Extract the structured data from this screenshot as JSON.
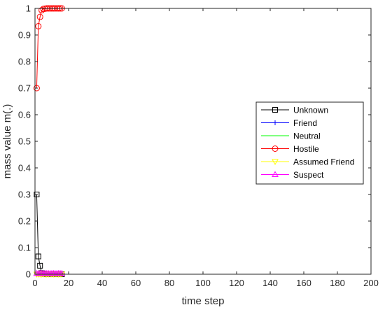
{
  "chart_data": {
    "type": "line",
    "xlabel": "time step",
    "ylabel": "mass value m(.)",
    "xlim": [
      0,
      200
    ],
    "ylim": [
      0,
      1
    ],
    "xticks": [
      "0",
      "20",
      "40",
      "60",
      "80",
      "100",
      "120",
      "140",
      "160",
      "180",
      "200"
    ],
    "yticks": [
      "0",
      "0.1",
      "0.2",
      "0.3",
      "0.4",
      "0.5",
      "0.6",
      "0.7",
      "0.8",
      "0.9",
      "1"
    ],
    "grid": false,
    "legend_position": "right",
    "x": [
      1,
      2,
      3,
      4,
      5,
      6,
      7,
      8,
      9,
      10,
      11,
      12,
      13,
      14,
      15,
      16
    ],
    "series": [
      {
        "name": "Unknown",
        "color": "#000000",
        "marker": "square",
        "values": [
          0.3,
          0.067,
          0.032,
          0.004,
          0.002,
          0.001,
          0,
          0,
          0,
          0,
          0,
          0,
          0,
          0,
          0,
          0
        ]
      },
      {
        "name": "Friend",
        "color": "#0000ff",
        "marker": "plus",
        "values": [
          0,
          0,
          0,
          0,
          0,
          0,
          0,
          0,
          0,
          0,
          0,
          0,
          0,
          0,
          0,
          0
        ]
      },
      {
        "name": "Neutral",
        "color": "#00ff00",
        "marker": "none",
        "values": [
          0,
          0,
          0,
          0,
          0,
          0,
          0,
          0,
          0,
          0,
          0,
          0,
          0,
          0,
          0,
          0
        ]
      },
      {
        "name": "Hostile",
        "color": "#ff0000",
        "marker": "circle",
        "values": [
          0.7,
          0.933,
          0.968,
          0.993,
          0.998,
          0.999,
          1,
          1,
          1,
          1,
          1,
          1,
          1,
          1,
          1,
          1
        ]
      },
      {
        "name": "Assumed Friend",
        "color": "#ffff00",
        "marker": "triangle-down",
        "values": [
          0,
          0,
          0,
          0,
          0,
          0,
          0,
          0,
          0,
          0,
          0,
          0,
          0,
          0,
          0,
          0
        ]
      },
      {
        "name": "Suspect",
        "color": "#ff00ff",
        "marker": "triangle-up",
        "values": [
          0.003,
          0.003,
          0.003,
          0.003,
          0.003,
          0.003,
          0.003,
          0.003,
          0.003,
          0.003,
          0.003,
          0.003,
          0.003,
          0.003,
          0.003,
          0.003
        ]
      }
    ]
  }
}
